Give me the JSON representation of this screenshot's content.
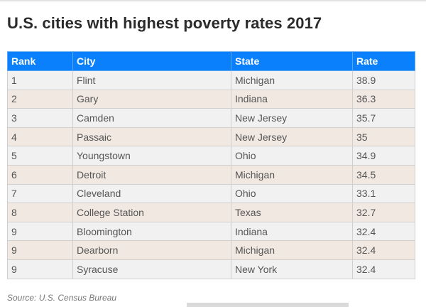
{
  "title": "U.S. cities with highest poverty rates 2017",
  "table": {
    "headers": [
      "Rank",
      "City",
      "State",
      "Rate"
    ],
    "rows": [
      {
        "rank": "1",
        "city": "Flint",
        "state": "Michigan",
        "rate": "38.9"
      },
      {
        "rank": "2",
        "city": "Gary",
        "state": "Indiana",
        "rate": "36.3"
      },
      {
        "rank": "3",
        "city": "Camden",
        "state": "New Jersey",
        "rate": "35.7"
      },
      {
        "rank": "4",
        "city": "Passaic",
        "state": "New Jersey",
        "rate": "35"
      },
      {
        "rank": "5",
        "city": "Youngstown",
        "state": "Ohio",
        "rate": "34.9"
      },
      {
        "rank": "6",
        "city": "Detroit",
        "state": "Michigan",
        "rate": "34.5"
      },
      {
        "rank": "7",
        "city": "Cleveland",
        "state": "Ohio",
        "rate": "33.1"
      },
      {
        "rank": "8",
        "city": "College Station",
        "state": "Texas",
        "rate": "32.7"
      },
      {
        "rank": "9",
        "city": "Bloomington",
        "state": "Indiana",
        "rate": "32.4"
      },
      {
        "rank": "9",
        "city": "Dearborn",
        "state": "Michigan",
        "rate": "32.4"
      },
      {
        "rank": "9",
        "city": "Syracuse",
        "state": "New York",
        "rate": "32.4"
      }
    ]
  },
  "source": "Source: U.S. Census Bureau",
  "colors": {
    "header_bg": "#0a80fc",
    "row_odd_bg": "#f1f1f1",
    "row_even_bg": "#f1e9e1",
    "title_text": "#2b2b2b"
  }
}
